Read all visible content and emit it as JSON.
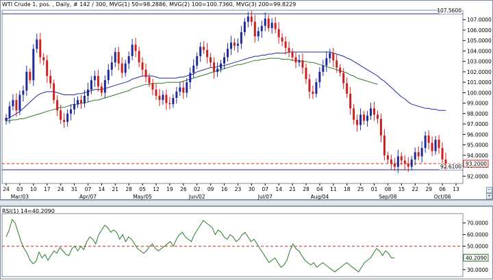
{
  "title": "WTI Crude 1. pos. , Daily, # 142 / 300, MVG(1) 50=98.2886, MVG(2) 100=100.7360, MVG(3) 200=99.8229",
  "rsi_title": "RSI(1) 14=40.2090",
  "colors": {
    "up": "#1f2a9a",
    "down": "#cc1f1f",
    "mvg50": "#1f2a9a",
    "mvg100": "#2a7a2a",
    "mvg200": "#1f2a9a",
    "rsi": "#2a7a2a",
    "dashed_red": "#cc1f1f",
    "dashed_blue": "#1f2a9a",
    "hline": "#1f2a9a"
  },
  "chart_data": [
    {
      "type": "candlestick",
      "title": "WTI Crude 1. pos. , Daily, # 142 / 300, MVG(1) 50=98.2886, MVG(2) 100=100.7360, MVG(3) 200=99.8229",
      "ylim": [
        91.3,
        107.9
      ],
      "y_ticks": [
        "92.0000",
        "93.0000",
        "94.0000",
        "95.0000",
        "96.0000",
        "97.0000",
        "98.0000",
        "99.0000",
        "100.0000",
        "101.0000",
        "102.0000",
        "103.0000",
        "104.0000",
        "105.0000",
        "106.0000",
        "107.0000"
      ],
      "x_ticks_day": [
        "24",
        "03",
        "10",
        "17",
        "24",
        "31",
        "07",
        "14",
        "21",
        "28",
        "05",
        "12",
        "19",
        "26",
        "02",
        "09",
        "16",
        "23",
        "30",
        "07",
        "14",
        "21",
        "28",
        "04",
        "11",
        "18",
        "25",
        "01",
        "08",
        "15",
        "22",
        "29",
        "06",
        "13"
      ],
      "x_ticks_month": [
        "Mar/03",
        "Apr/07",
        "May/05",
        "Jun/02",
        "Jul/07",
        "Aug/04",
        "Sep/08",
        "Oct/06"
      ],
      "x_ticks_month_at": [
        1,
        6,
        10,
        14,
        19,
        23,
        28,
        32
      ],
      "price_labels": {
        "top_line": "107.5600",
        "bottom_line": "92.6100",
        "last": "93.2000"
      },
      "top_line_value": 107.56,
      "bottom_line_value": 92.61,
      "last_value": 93.2,
      "close": [
        97.6,
        98.7,
        99.3,
        98.3,
        99.8,
        100.2,
        102.0,
        101.2,
        104.2,
        105.1,
        103.4,
        103.1,
        101.6,
        100.9,
        99.3,
        98.3,
        97.4,
        97.2,
        98.0,
        98.4,
        98.9,
        99.3,
        99.0,
        99.7,
        100.3,
        101.2,
        101.6,
        100.6,
        100.0,
        101.2,
        102.2,
        102.9,
        103.9,
        102.8,
        101.9,
        102.8,
        103.5,
        104.6,
        104.0,
        102.9,
        102.2,
        101.5,
        100.9,
        100.3,
        99.7,
        99.3,
        99.8,
        99.0,
        98.9,
        99.5,
        100.1,
        100.5,
        100.0,
        101.0,
        101.9,
        102.6,
        103.5,
        104.4,
        104.1,
        103.4,
        102.9,
        102.0,
        102.3,
        102.8,
        103.4,
        104.2,
        104.8,
        104.5,
        104.7,
        105.8,
        106.8,
        107.3,
        106.8,
        105.4,
        105.9,
        106.4,
        107.1,
        106.2,
        106.7,
        106.1,
        105.3,
        104.9,
        104.3,
        103.9,
        103.4,
        102.9,
        103.1,
        102.4,
        101.3,
        100.1,
        99.9,
        101.0,
        102.0,
        102.6,
        103.3,
        103.8,
        103.1,
        102.4,
        101.9,
        100.9,
        99.9,
        98.5,
        97.4,
        96.9,
        97.9,
        97.3,
        97.8,
        98.5,
        97.9,
        97.5,
        95.9,
        94.0,
        93.6,
        93.2,
        92.9,
        93.9,
        93.5,
        93.2,
        92.9,
        93.6,
        94.3,
        93.9,
        94.7,
        95.9,
        95.2,
        94.4,
        95.5,
        94.7,
        93.6,
        93.2
      ],
      "mvg_50": [
        97.4,
        97.6,
        97.8,
        98.0,
        98.2,
        98.5,
        98.8,
        99.1,
        99.4,
        99.7,
        99.9,
        100.0,
        100.1,
        100.1,
        100.1,
        100.0,
        99.9,
        99.8,
        99.8,
        99.8,
        99.8,
        99.9,
        99.9,
        100.0,
        100.1,
        100.2,
        100.3,
        100.3,
        100.3,
        100.4,
        100.5,
        100.6,
        100.7,
        100.8,
        100.9,
        101.0,
        101.1,
        101.3,
        101.4,
        101.5,
        101.6,
        101.6,
        101.6,
        101.6,
        101.5,
        101.4,
        101.4,
        101.4,
        101.4,
        101.4,
        101.4,
        101.5,
        101.5,
        101.6,
        101.7,
        101.8,
        102.0,
        102.1,
        102.2,
        102.3,
        102.4,
        102.4,
        102.5,
        102.6,
        102.6,
        102.7,
        102.8,
        102.9,
        103.0,
        103.1,
        103.2,
        103.3,
        103.4,
        103.5,
        103.5,
        103.6,
        103.6,
        103.7,
        103.7,
        103.8,
        103.8,
        103.8,
        103.8,
        103.9,
        103.9,
        103.9,
        103.9,
        103.9,
        103.9,
        103.9,
        103.9,
        103.9,
        103.9,
        103.9,
        103.9,
        103.9,
        103.8,
        103.7,
        103.6,
        103.5,
        103.3,
        103.2,
        103.0,
        102.8,
        102.6,
        102.4,
        102.2,
        102.0,
        101.8,
        101.6,
        101.3,
        101.1,
        100.8,
        100.5,
        100.2,
        99.9,
        99.6,
        99.4,
        99.1,
        98.9,
        98.8,
        98.7,
        98.6,
        98.5,
        98.5,
        98.4,
        98.4,
        98.3,
        98.3,
        98.3
      ],
      "mvg_100": [
        null,
        null,
        null,
        null,
        null,
        null,
        null,
        null,
        null,
        null,
        null,
        null,
        null,
        null,
        null,
        null,
        null,
        null,
        null,
        null,
        null,
        null,
        null,
        null,
        null,
        null,
        null,
        null,
        null,
        null,
        null,
        null,
        null,
        null,
        null,
        null,
        null,
        null,
        null,
        null,
        null,
        null,
        null,
        null,
        null,
        null,
        null,
        null,
        null,
        null,
        null,
        null,
        null,
        null,
        null,
        null,
        null,
        null,
        null,
        null,
        null,
        null,
        null,
        null,
        null,
        null,
        null,
        null,
        null,
        null,
        null,
        null,
        null,
        null,
        null,
        null,
        null,
        null,
        null,
        null,
        null,
        null,
        null,
        null,
        null,
        null,
        null,
        null,
        null,
        null,
        null,
        null,
        null,
        null,
        null,
        null,
        null,
        null,
        null,
        null,
        null,
        null,
        null,
        null,
        null,
        null,
        null,
        null,
        null,
        null,
        null,
        null,
        null,
        null,
        null,
        null,
        null,
        null,
        null,
        null,
        null,
        null,
        null,
        null,
        null,
        null,
        null,
        null,
        null,
        null,
        null,
        null,
        null
      ],
      "mvg_100_tail": [
        97.3,
        97.3,
        97.4,
        97.4,
        97.5,
        97.5,
        97.6,
        97.7,
        97.8,
        97.9,
        98.0,
        98.1,
        98.2,
        98.3,
        98.4,
        98.5,
        98.6,
        98.6,
        98.7,
        98.8,
        98.9,
        98.9,
        99.0,
        99.0,
        99.1,
        99.2,
        99.3,
        99.3,
        99.4,
        99.5,
        99.6,
        99.7,
        99.8,
        99.9,
        100.0,
        100.1,
        100.2,
        100.4,
        100.5,
        100.6,
        100.7,
        100.8,
        100.8,
        100.9,
        100.9,
        100.9,
        100.9,
        101.0,
        101.0,
        101.0,
        101.0,
        101.0,
        101.1,
        101.2,
        101.3,
        101.4,
        101.5,
        101.6,
        101.7,
        101.8,
        101.9,
        102.0,
        102.1,
        102.2,
        102.3,
        102.4,
        102.5,
        102.6,
        102.7,
        102.7,
        102.8,
        102.9,
        103.0,
        103.1,
        103.1,
        103.2,
        103.2,
        103.3,
        103.3,
        103.3,
        103.3,
        103.2,
        103.2,
        103.2,
        103.1,
        103.1,
        103.1,
        103.0,
        103.0,
        102.9,
        102.9,
        102.8,
        102.7,
        102.6,
        102.5,
        102.4,
        102.3,
        102.2,
        102.1,
        102.0,
        101.9,
        101.7,
        101.6,
        101.4,
        101.3,
        101.2,
        101.1,
        101.0,
        100.9,
        100.8
      ]
    },
    {
      "type": "line",
      "title": "RSI(1) 14=40.2090",
      "ylim": [
        24,
        78
      ],
      "y_ticks": [
        "30.0000",
        "40.0000",
        "50.0000",
        "60.0000",
        "70.0000"
      ],
      "last_value": 40.209,
      "level": 50,
      "values": [
        58,
        64,
        73,
        70,
        62,
        54,
        48,
        44,
        38,
        35,
        37,
        45,
        40,
        43,
        38,
        42,
        46,
        44,
        49,
        46,
        43,
        42,
        48,
        50,
        46,
        50,
        47,
        54,
        58,
        56,
        52,
        60,
        64,
        68,
        66,
        62,
        64,
        62,
        56,
        60,
        54,
        58,
        56,
        52,
        48,
        46,
        44,
        46,
        50,
        52,
        48,
        46,
        48,
        50,
        52,
        54,
        50,
        56,
        60,
        62,
        58,
        56,
        54,
        60,
        64,
        68,
        72,
        70,
        68,
        66,
        60,
        64,
        62,
        58,
        56,
        60,
        58,
        54,
        56,
        60,
        62,
        58,
        54,
        56,
        52,
        48,
        44,
        40,
        36,
        38,
        40,
        36,
        32,
        34,
        38,
        46,
        52,
        48,
        46,
        42,
        38,
        36,
        34,
        36,
        32,
        34,
        36,
        34,
        32,
        30,
        28,
        30,
        32,
        34,
        36,
        34,
        32,
        30,
        28,
        32,
        36,
        38,
        40,
        44,
        48,
        46,
        42,
        46,
        44,
        40,
        40
      ]
    }
  ]
}
